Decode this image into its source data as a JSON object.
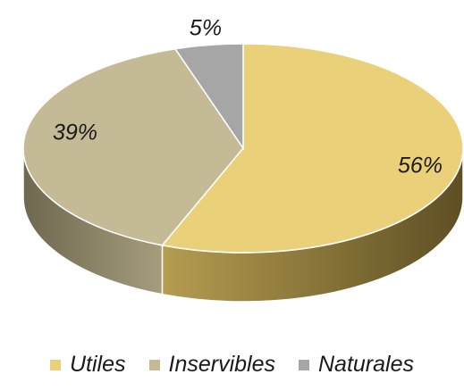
{
  "chart_data": {
    "type": "pie",
    "title": "",
    "style": "3d",
    "legend_position": "bottom",
    "slices": [
      {
        "label": "Utiles",
        "value": 56,
        "display": "56%",
        "color": "#EAD179",
        "side_color": "#A78F45"
      },
      {
        "label": "Inservibles",
        "value": 39,
        "display": "39%",
        "color": "#C4BA96",
        "side_color": "#8F8768"
      },
      {
        "label": "Naturales",
        "value": 5,
        "display": "5%",
        "color": "#A6A6A6",
        "side_color": "#7A7A7A"
      }
    ]
  }
}
